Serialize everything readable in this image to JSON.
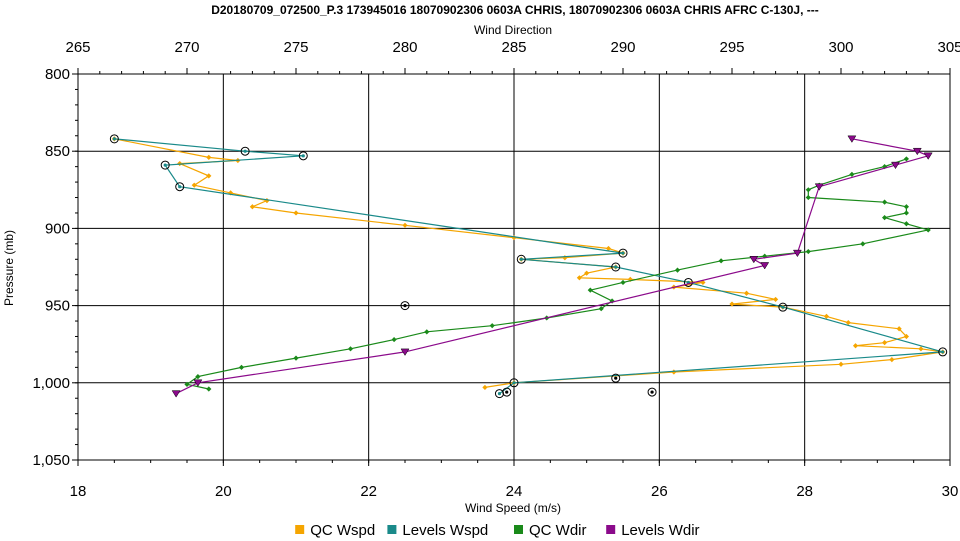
{
  "chart_data": {
    "type": "line",
    "title": "D20180709_072500_P.3 173945016 18070902306 0603A CHRIS, 18070902306 0603A CHRIS AFRC C-130J, ---",
    "xlabel": "Wind Speed (m/s)",
    "x2label": "Wind Direction",
    "ylabel": "Pressure (mb)",
    "xlim": [
      18,
      30
    ],
    "x2lim": [
      265,
      305
    ],
    "ylim": [
      800,
      1050
    ],
    "y_inverted": true,
    "grid": true,
    "legend_position": "bottom",
    "x_ticks": [
      "18",
      "20",
      "22",
      "24",
      "26",
      "28",
      "30"
    ],
    "x2_ticks": [
      "265",
      "270",
      "275",
      "280",
      "285",
      "290",
      "295",
      "300",
      "305"
    ],
    "y_ticks": [
      "800",
      "850",
      "900",
      "950",
      "1,000",
      "1,050"
    ],
    "series": [
      {
        "name": "QC Wspd",
        "axis": "bottom",
        "color": "#F5A500",
        "marker": "diamond",
        "points": [
          [
            18.5,
            842
          ],
          [
            19.8,
            854
          ],
          [
            20.2,
            856
          ],
          [
            19.4,
            858
          ],
          [
            19.8,
            866
          ],
          [
            19.6,
            872
          ],
          [
            20.1,
            877
          ],
          [
            20.6,
            882
          ],
          [
            20.4,
            886
          ],
          [
            21.0,
            890
          ],
          [
            22.5,
            898
          ],
          [
            24.0,
            906
          ],
          [
            25.3,
            913
          ],
          [
            25.5,
            916
          ],
          [
            24.7,
            919
          ],
          [
            24.1,
            920
          ],
          [
            25.4,
            925
          ],
          [
            25.0,
            929
          ],
          [
            24.9,
            932
          ],
          [
            25.6,
            933
          ],
          [
            26.6,
            935
          ],
          [
            26.2,
            938
          ],
          [
            27.2,
            942
          ],
          [
            27.6,
            946
          ],
          [
            27.0,
            949
          ],
          [
            27.7,
            951
          ],
          [
            28.3,
            957
          ],
          [
            28.6,
            961
          ],
          [
            29.3,
            965
          ],
          [
            29.4,
            970
          ],
          [
            29.1,
            974
          ],
          [
            28.7,
            976
          ],
          [
            29.6,
            978
          ],
          [
            29.9,
            980
          ],
          [
            29.2,
            985
          ],
          [
            28.5,
            988
          ],
          [
            26.2,
            993
          ],
          [
            24.0,
            1000
          ],
          [
            23.6,
            1003
          ]
        ]
      },
      {
        "name": "Levels Wspd",
        "axis": "bottom",
        "color": "#1A8A8A",
        "marker": "circle",
        "points": [
          [
            18.5,
            842
          ],
          [
            20.3,
            850
          ],
          [
            21.1,
            853
          ],
          [
            19.2,
            859
          ],
          [
            19.4,
            873
          ],
          [
            25.5,
            916
          ],
          [
            24.1,
            920
          ],
          [
            25.4,
            925
          ],
          [
            26.4,
            935
          ],
          [
            27.7,
            951
          ],
          [
            29.9,
            980
          ],
          [
            24.0,
            1000
          ],
          [
            23.8,
            1007
          ]
        ]
      },
      {
        "name": "QC Wdir",
        "axis": "top",
        "color": "#1A8A1A",
        "marker": "diamond",
        "points": [
          [
            303.0,
            855
          ],
          [
            302.0,
            860
          ],
          [
            300.5,
            865
          ],
          [
            299.0,
            872
          ],
          [
            298.5,
            875
          ],
          [
            298.5,
            880
          ],
          [
            302.0,
            883
          ],
          [
            303.0,
            886
          ],
          [
            303.0,
            890
          ],
          [
            302.0,
            893
          ],
          [
            303.0,
            897
          ],
          [
            304.0,
            901
          ],
          [
            301.0,
            910
          ],
          [
            298.5,
            915
          ],
          [
            296.5,
            918
          ],
          [
            294.5,
            921
          ],
          [
            292.5,
            927
          ],
          [
            290.0,
            935
          ],
          [
            288.5,
            940
          ],
          [
            289.5,
            947
          ],
          [
            289.0,
            952
          ],
          [
            286.5,
            958
          ],
          [
            284.0,
            963
          ],
          [
            281.0,
            967
          ],
          [
            279.5,
            972
          ],
          [
            277.5,
            978
          ],
          [
            275.0,
            984
          ],
          [
            272.5,
            990
          ],
          [
            270.5,
            996
          ],
          [
            270.0,
            1001
          ],
          [
            271.0,
            1004
          ]
        ]
      },
      {
        "name": "Levels Wdir",
        "axis": "top",
        "color": "#8B0A8B",
        "marker": "triangle",
        "points": [
          [
            300.5,
            842
          ],
          [
            303.5,
            850
          ],
          [
            304.0,
            853
          ],
          [
            302.5,
            859
          ],
          [
            299.0,
            873
          ],
          [
            298.0,
            916
          ],
          [
            296.0,
            920
          ],
          [
            296.5,
            924
          ],
          [
            280.0,
            980
          ],
          [
            270.5,
            1000
          ],
          [
            269.5,
            1007
          ]
        ]
      },
      {
        "name": "",
        "axis": "bottom",
        "color": "#000000",
        "marker": "circle",
        "line": false,
        "points": [
          [
            22.5,
            950
          ],
          [
            25.4,
            997
          ],
          [
            25.9,
            1006
          ],
          [
            23.9,
            1006
          ]
        ]
      }
    ]
  }
}
